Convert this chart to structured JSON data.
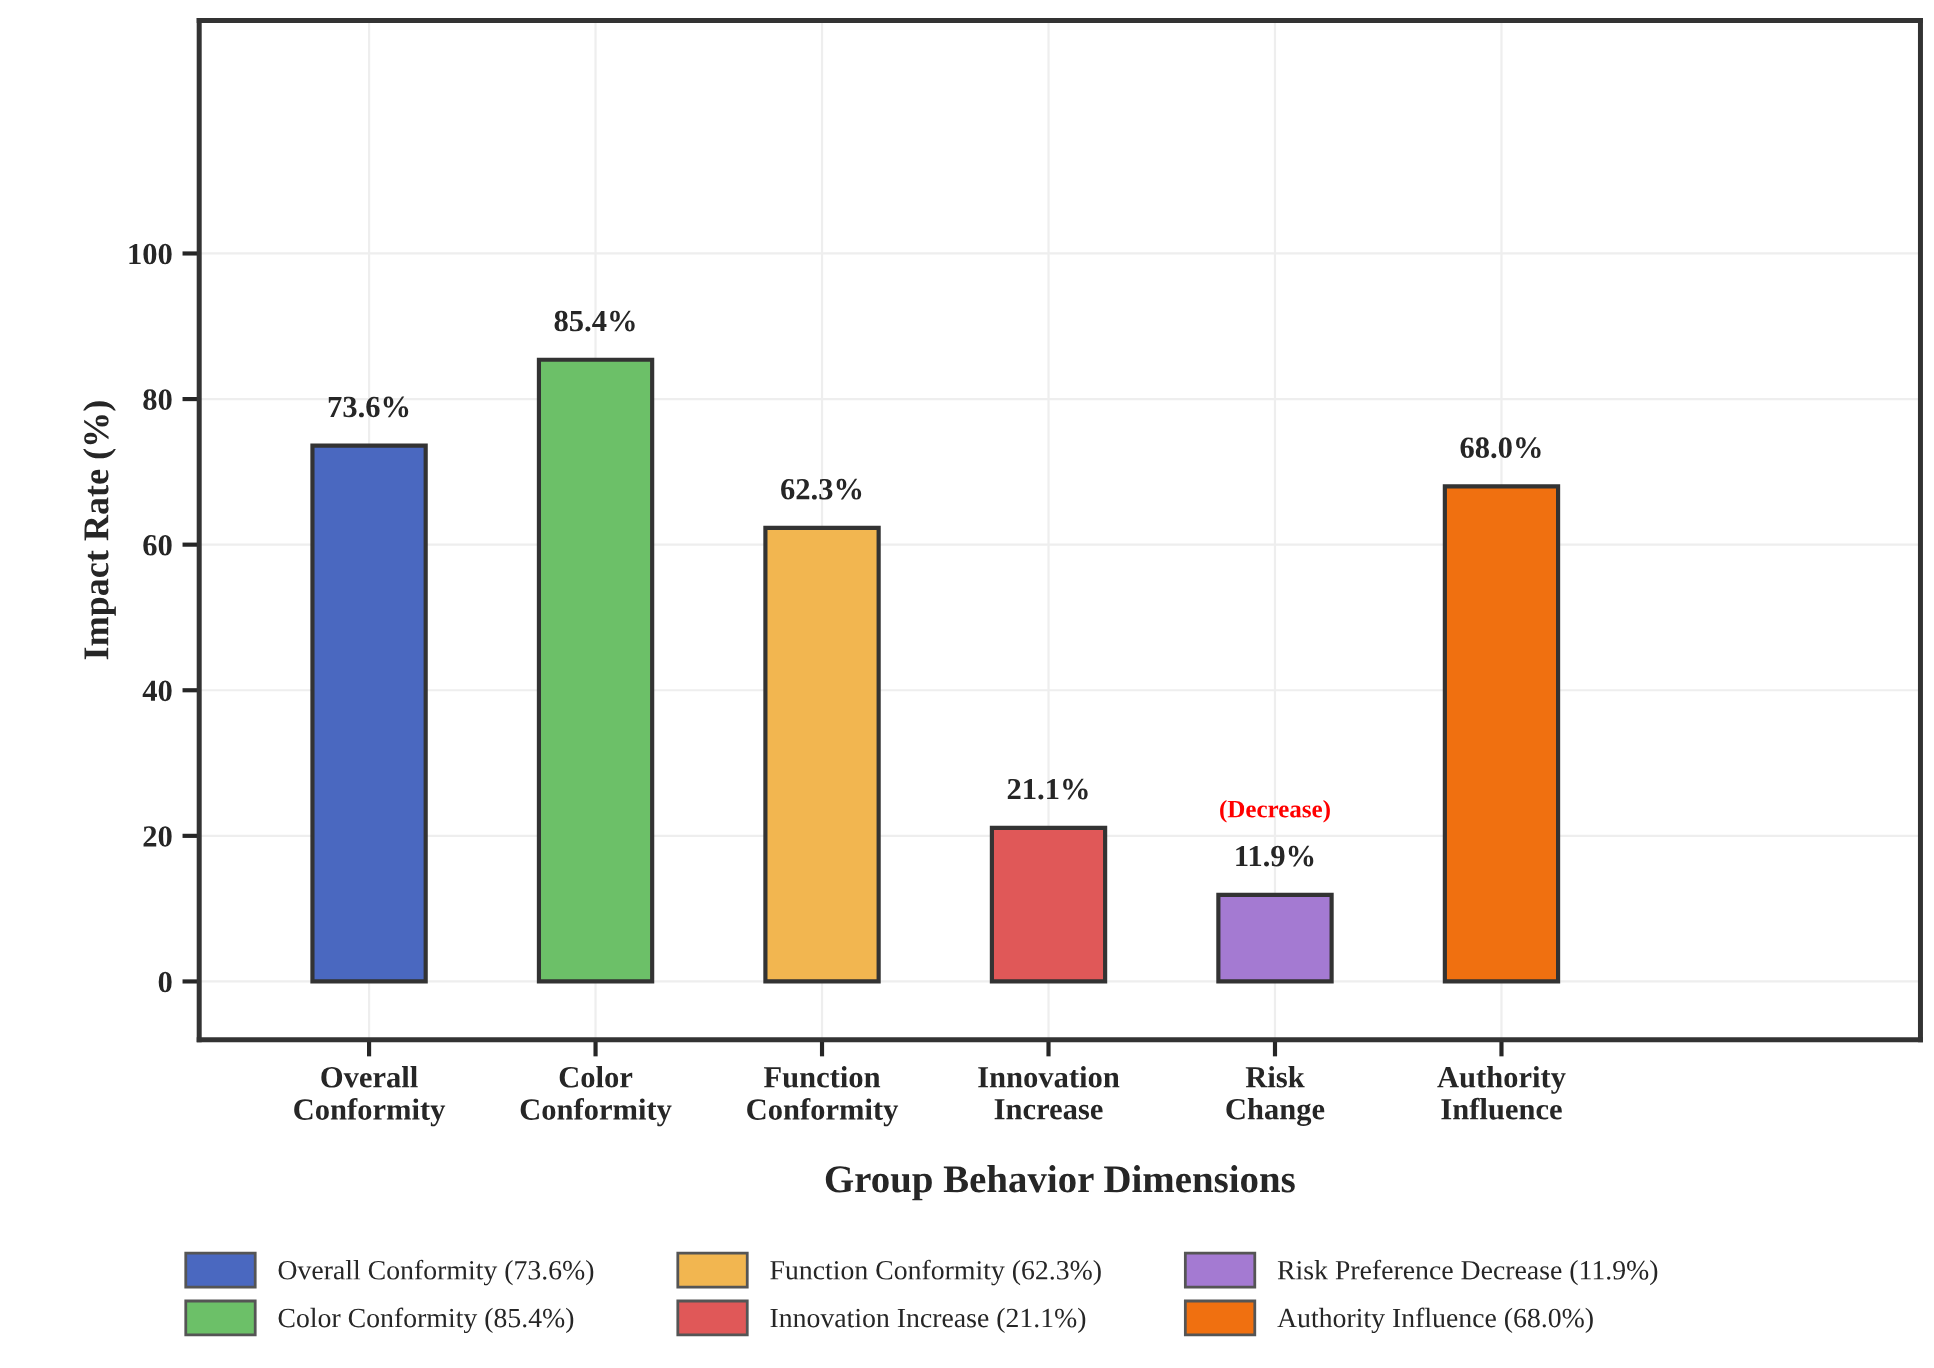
{
  "chart_data": {
    "type": "bar",
    "xlabel": "Group Behavior Dimensions",
    "ylabel": "Impact Rate (%)",
    "categories": [
      "Overall\nConformity",
      "Color\nConformity",
      "Function\nConformity",
      "Innovation\nIncrease",
      "Risk\nChange",
      "Authority\nInfluence"
    ],
    "series": [
      {
        "name": "Overall Conformity (73.6%)",
        "color": "#4a68c0",
        "values": [
          73.6,
          null,
          null,
          null,
          null,
          null
        ],
        "value_labels": [
          "73.6%",
          null,
          null,
          null,
          null,
          null
        ]
      },
      {
        "name": "Color Conformity (85.4%)",
        "color": "#6cc068",
        "values": [
          null,
          85.4,
          null,
          null,
          null,
          null
        ],
        "value_labels": [
          null,
          "85.4%",
          null,
          null,
          null,
          null
        ]
      },
      {
        "name": "Function Conformity (62.3%)",
        "color": "#f2b650",
        "values": [
          null,
          null,
          62.3,
          null,
          null,
          null
        ],
        "value_labels": [
          null,
          null,
          "62.3%",
          null,
          null,
          null
        ]
      },
      {
        "name": "Innovation Increase (21.1%)",
        "color": "#e05858",
        "values": [
          null,
          null,
          null,
          21.1,
          null,
          null
        ],
        "value_labels": [
          null,
          null,
          null,
          "21.1%",
          null,
          null
        ]
      },
      {
        "name": "Risk Preference Decrease (11.9%)",
        "color": "#a47ad2",
        "values": [
          null,
          null,
          null,
          null,
          11.9,
          null
        ],
        "value_labels": [
          null,
          null,
          null,
          null,
          "11.9%",
          null
        ]
      },
      {
        "name": "Authority Influence (68.0%)",
        "color": "#f07010",
        "values": [
          null,
          null,
          null,
          null,
          null,
          68.0
        ],
        "value_labels": [
          null,
          null,
          null,
          null,
          null,
          "68.0%"
        ]
      }
    ],
    "annotations": [
      {
        "text": "(Decrease)",
        "x": "Risk\nChange",
        "y": 11.9
      }
    ],
    "ylim": [
      -8,
      132
    ],
    "yticks": [
      0,
      20,
      40,
      60,
      80,
      100
    ],
    "grid": true,
    "legend": "bottom"
  }
}
